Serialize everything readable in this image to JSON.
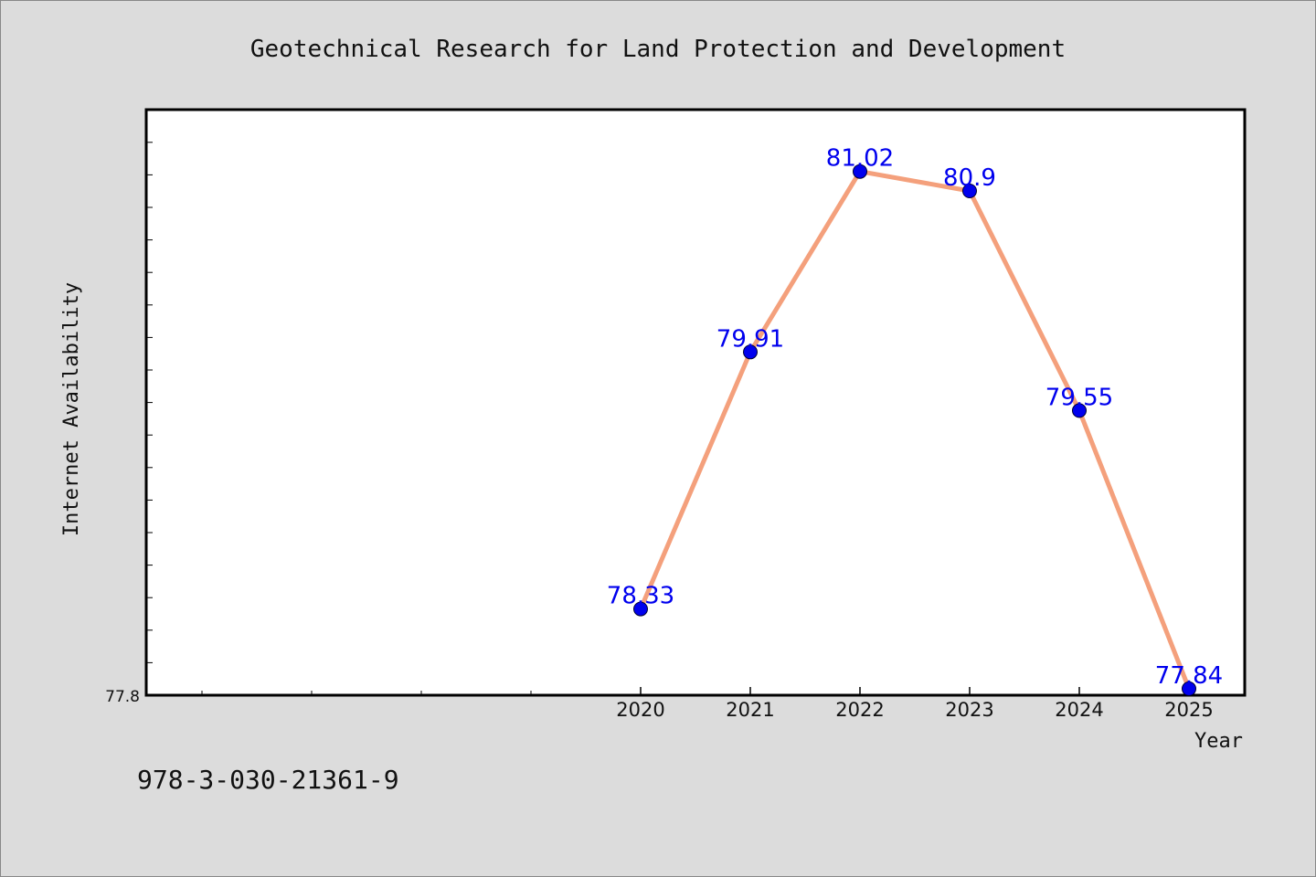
{
  "chart_data": {
    "type": "line",
    "title": "Geotechnical Research for Land Protection and Development",
    "xlabel": "Year",
    "ylabel": "Internet Availability",
    "categories": [
      "2020",
      "2021",
      "2022",
      "2023",
      "2024",
      "2025"
    ],
    "values": [
      78.33,
      79.91,
      81.02,
      80.9,
      79.55,
      77.84
    ],
    "data_labels": [
      "78.33",
      "79.91",
      "81.02",
      "80.9",
      "79.55",
      "77.84"
    ],
    "ylim": [
      77.8,
      81.4
    ],
    "y_tick_labels": [
      "77.8"
    ],
    "grid": false,
    "legend": "none",
    "colors": {
      "line": "#f4a07c",
      "marker": "#0000ee",
      "data_label": "#0000ee",
      "plot_bg": "#ffffff",
      "figure_bg": "#dcdcdc"
    }
  },
  "footer": {
    "isbn": "978-3-030-21361-9"
  }
}
